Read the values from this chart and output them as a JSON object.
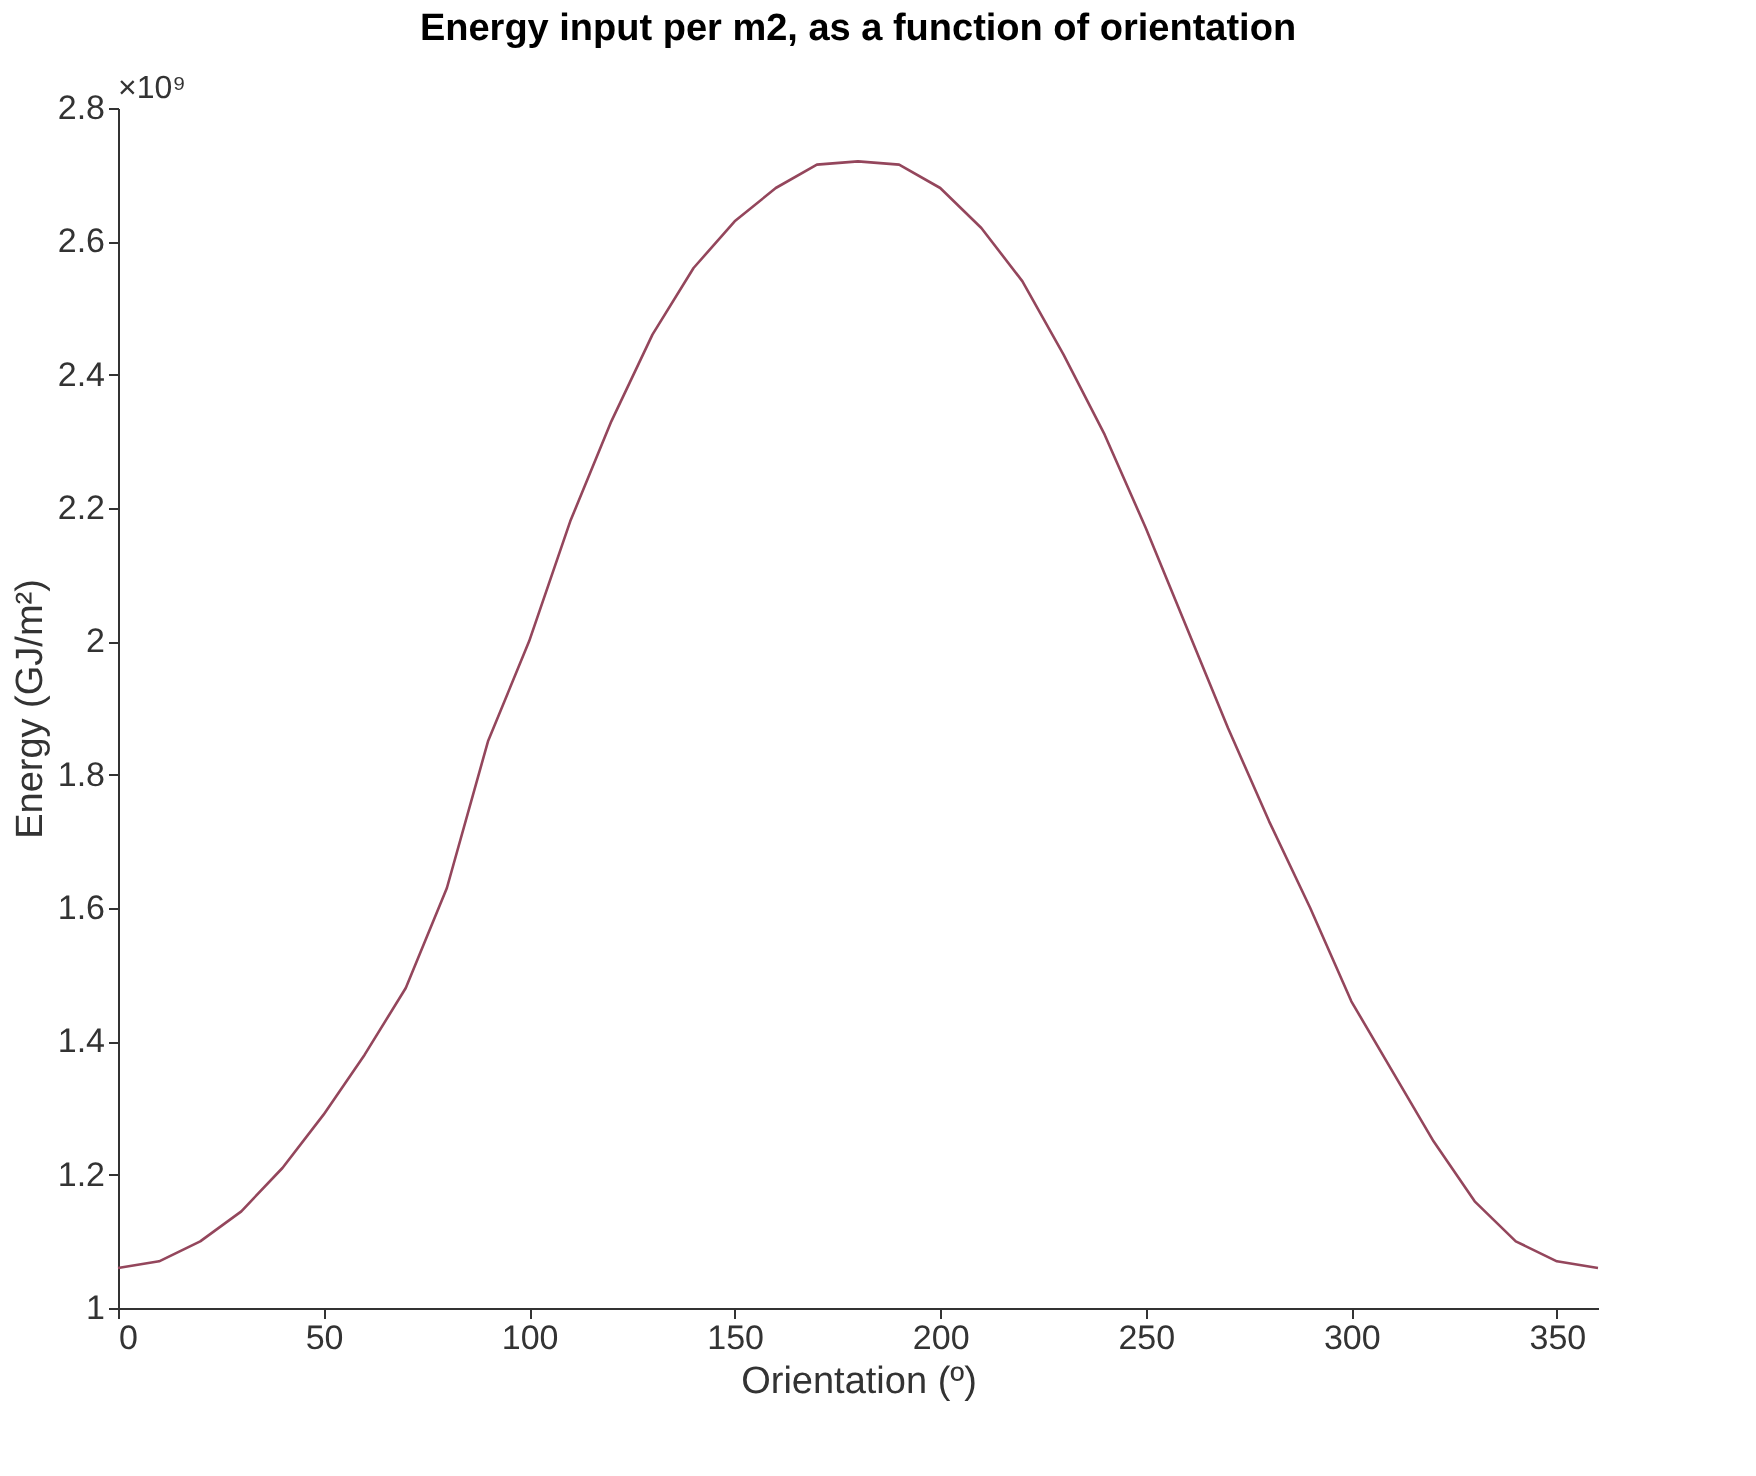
{
  "chart_data": {
    "type": "line",
    "title": "Energy input per m2, as a function of orientation",
    "xlabel": "Orientation (º)",
    "ylabel": "Energy (GJ/m²)",
    "annotations": [
      "×10⁹"
    ],
    "x": [
      0,
      10,
      20,
      30,
      40,
      50,
      60,
      70,
      80,
      90,
      100,
      110,
      120,
      130,
      140,
      150,
      160,
      170,
      180,
      190,
      200,
      210,
      220,
      230,
      240,
      250,
      260,
      270,
      280,
      290,
      300,
      310,
      320,
      330,
      340,
      350,
      360
    ],
    "series": [
      {
        "color": "#94465c",
        "values": [
          1.06,
          1.07,
          1.1,
          1.145,
          1.21,
          1.29,
          1.38,
          1.48,
          1.63,
          1.85,
          2.0,
          2.18,
          2.33,
          2.46,
          2.56,
          2.63,
          2.68,
          2.715,
          2.72,
          2.715,
          2.68,
          2.62,
          2.54,
          2.43,
          2.31,
          2.17,
          2.02,
          1.87,
          1.73,
          1.6,
          1.46,
          1.355,
          1.25,
          1.16,
          1.1,
          1.07,
          1.06
        ]
      }
    ],
    "xlim": [
      0,
      360
    ],
    "xticks": [
      0,
      50,
      100,
      150,
      200,
      250,
      300,
      350
    ],
    "ylim": [
      1,
      2.8
    ],
    "yticks": [
      1,
      1.2,
      1.4,
      1.6,
      1.8,
      2,
      2.2,
      2.4,
      2.6,
      2.8
    ],
    "grid": false,
    "marker": "none",
    "line_style": "solid"
  }
}
